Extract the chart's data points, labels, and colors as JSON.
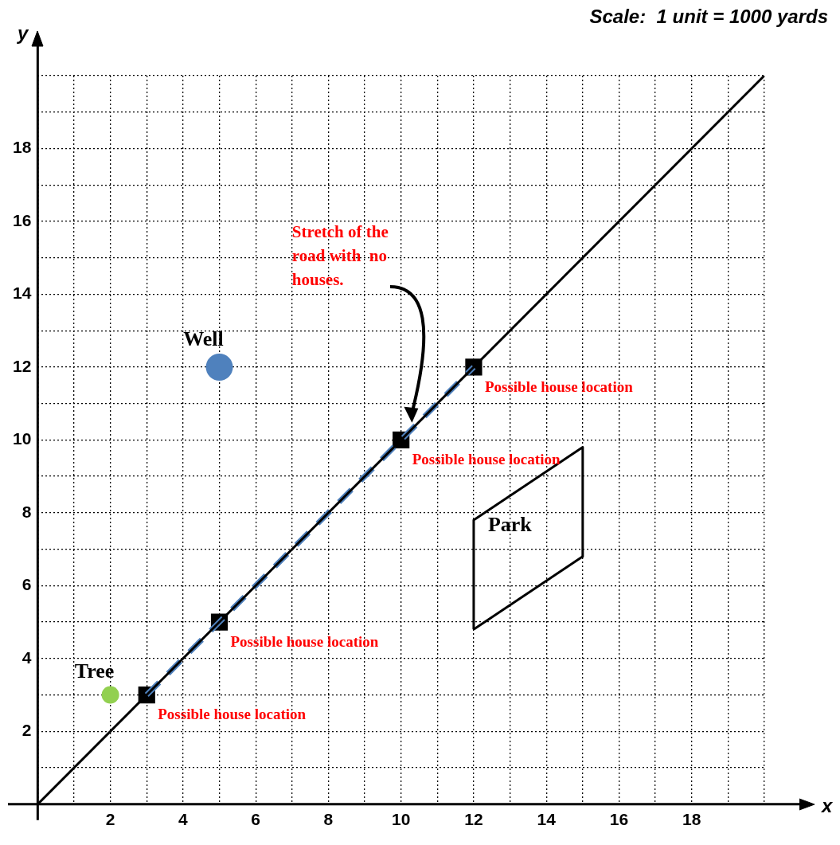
{
  "chart_data": {
    "type": "scatter",
    "xlabel": "x",
    "ylabel": "y",
    "xlim": [
      0,
      20
    ],
    "ylim": [
      0,
      20
    ],
    "xticks": [
      {
        "value": 0,
        "label": null
      },
      {
        "value": 1,
        "label": null
      },
      2,
      {
        "value": 3,
        "label": null
      },
      4,
      {
        "value": 5,
        "label": null
      },
      6,
      {
        "value": 7,
        "label": null
      },
      8,
      {
        "value": 9,
        "label": null
      },
      10,
      {
        "value": 11,
        "label": null
      },
      12,
      {
        "value": 13,
        "label": null
      },
      14,
      {
        "value": 15,
        "label": null
      },
      16,
      {
        "value": 17,
        "label": null
      },
      18,
      {
        "value": 19,
        "label": null
      },
      {
        "value": 20,
        "label": null
      }
    ],
    "yticks": [
      {
        "value": 0,
        "label": null
      },
      {
        "value": 1,
        "label": null
      },
      2,
      {
        "value": 3,
        "label": null
      },
      4,
      {
        "value": 5,
        "label": null
      },
      6,
      {
        "value": 7,
        "label": null
      },
      8,
      {
        "value": 9,
        "label": null
      },
      10,
      {
        "value": 11,
        "label": null
      },
      12,
      {
        "value": 13,
        "label": null
      },
      14,
      {
        "value": 15,
        "label": null
      },
      16,
      {
        "value": 17,
        "label": null
      },
      18,
      {
        "value": 19,
        "label": null
      },
      {
        "value": 20,
        "label": null
      }
    ],
    "grid": true,
    "legend": false,
    "series": [
      {
        "type": "line",
        "color": "#000000",
        "x": [
          0,
          20
        ],
        "values": [
          0,
          20
        ],
        "marker": "none",
        "line_style": "solid"
      },
      {
        "type": "line",
        "color": "#4f81bd",
        "x": [
          3,
          12
        ],
        "values": [
          3,
          12
        ],
        "marker": "none",
        "line_style": "dashed"
      },
      {
        "type": "line",
        "name": "Park",
        "color": "#000000",
        "x": [
          12,
          12,
          15,
          15
        ],
        "values": [
          4.8,
          7.8,
          9.8,
          6.8
        ],
        "marker": "none",
        "line_style": "solid"
      },
      {
        "type": "line",
        "color": "#000000",
        "x": [
          12,
          15
        ],
        "values": [
          4.8,
          6.8
        ],
        "marker": "none",
        "line_style": "solid"
      },
      {
        "type": "scatter",
        "color": "#000000",
        "x": [
          3,
          5,
          10,
          12
        ],
        "values": [
          3,
          5,
          10,
          12
        ],
        "marker": "square"
      },
      {
        "type": "scatter",
        "name": "Well",
        "color": "#4f81bd",
        "x": [
          5
        ],
        "values": [
          12
        ],
        "marker": "circle"
      },
      {
        "type": "scatter",
        "name": "Tree",
        "color": "#92d050",
        "x": [
          2
        ],
        "values": [
          3
        ],
        "marker": "circle"
      }
    ],
    "annotations": [
      "Scale:  1 unit = 1000 yards",
      {
        "text": "Possible house location",
        "x": 3,
        "y": 3
      },
      {
        "text": "Possible house location",
        "x": 5,
        "y": 5
      },
      {
        "text": "Possible house location",
        "x": 10,
        "y": 10
      },
      {
        "text": "Possible house location",
        "x": 12,
        "y": 12
      },
      "Stretch of the road with  no houses."
    ]
  }
}
